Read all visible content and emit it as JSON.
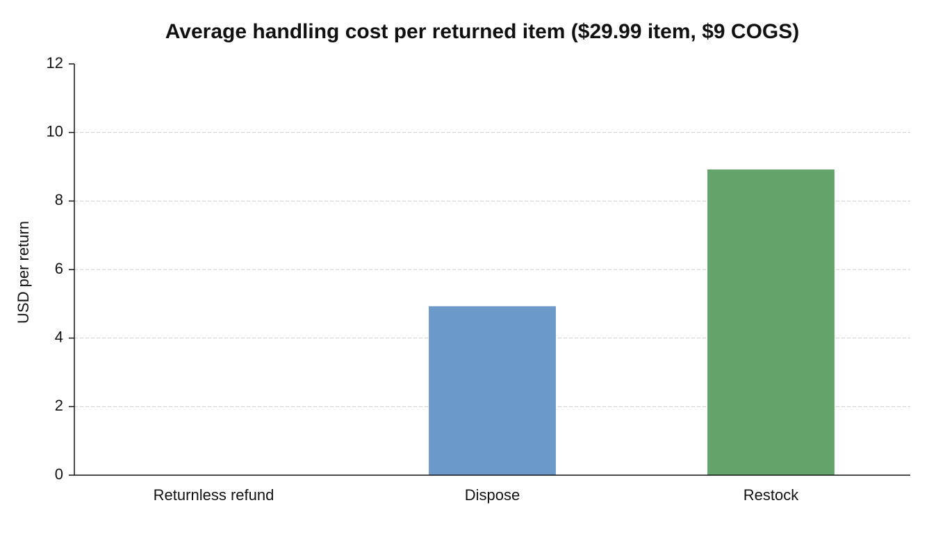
{
  "chart_data": {
    "type": "bar",
    "title": "Average handling cost per returned item ($29.99 item, $9 COGS)",
    "y_label": "USD per return",
    "categories": [
      "Returnless refund",
      "Dispose",
      "Restock"
    ],
    "values": [
      0,
      4.93,
      8.92
    ],
    "colors": [
      "#e07b6f",
      "#6c9ac8",
      "#64a46a"
    ],
    "ylim": [
      0,
      12
    ],
    "yticks": [
      0,
      2,
      4,
      6,
      8,
      10,
      12
    ],
    "grid": true
  }
}
